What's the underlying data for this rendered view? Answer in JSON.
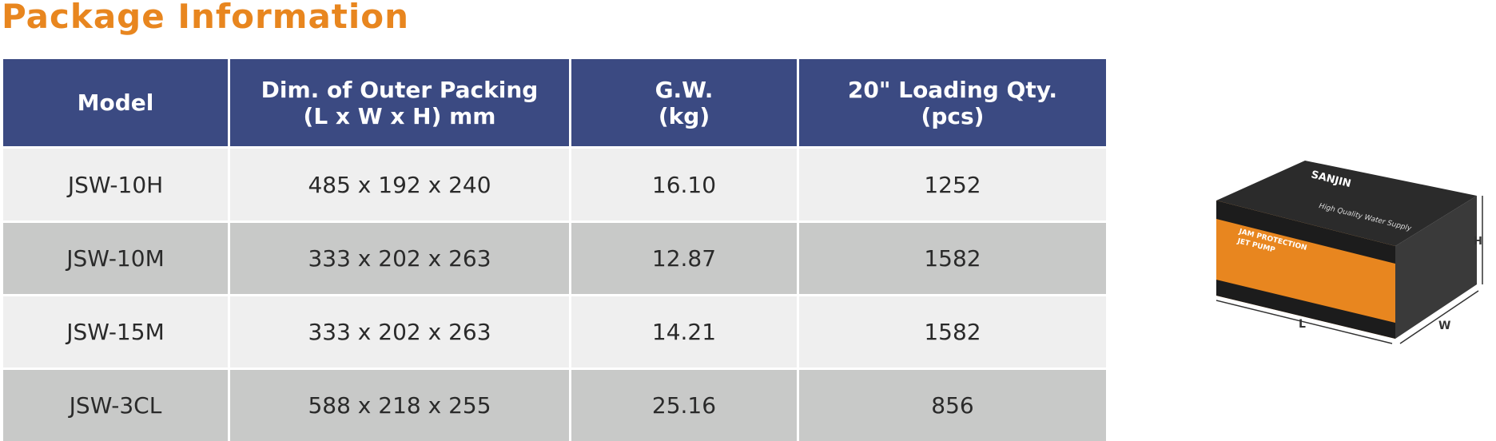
{
  "header": {
    "title": "Package Information"
  },
  "table": {
    "columns": [
      [
        "Model"
      ],
      [
        "Dim. of Outer Packing",
        "(L x W x H) mm"
      ],
      [
        "G.W.",
        "(kg)"
      ],
      [
        "20\" Loading Qty.",
        "(pcs)"
      ]
    ],
    "rows": [
      [
        "JSW-10H",
        "485 x 192 x 240",
        "16.10",
        "1252"
      ],
      [
        "JSW-10M",
        "333 x 202 x 263",
        "12.87",
        "1582"
      ],
      [
        "JSW-15M",
        "333 x 202 x 263",
        "14.21",
        "1582"
      ],
      [
        "JSW-3CL",
        "588 x 218 x 255",
        "25.16",
        "856"
      ]
    ]
  },
  "illustration": {
    "brand": "SANJIN",
    "tagline": "High Quality Water Supply",
    "product": "JAM PROTECTION",
    "product_type": "JET PUMP",
    "dims": {
      "length": "L",
      "width": "W",
      "height": "H"
    }
  }
}
